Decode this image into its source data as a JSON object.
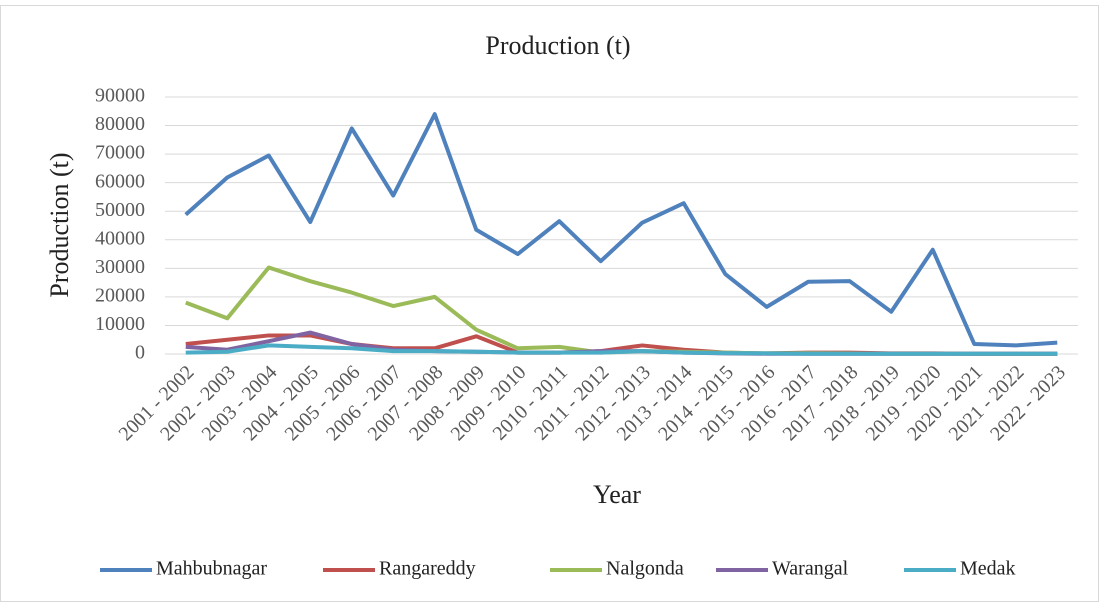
{
  "chart_data": {
    "type": "line",
    "title": "Production (t)",
    "x_label": "Year",
    "y_label": "Production (t)",
    "categories": [
      "2001 - 2002",
      "2002 - 2003",
      "2003 - 2004",
      "2004 - 2005",
      "2005 - 2006",
      "2006 - 2007",
      "2007 - 2008",
      "2008 - 2009",
      "2009 - 2010",
      "2010 - 2011",
      "2011 - 2012",
      "2012 - 2013",
      "2013 - 2014",
      "2014 - 2015",
      "2015 - 2016",
      "2016 - 2017",
      "2017 - 2018",
      "2018 - 2019",
      "2019 - 2020",
      "2020 - 2021",
      "2021 - 2022",
      "2022 - 2023"
    ],
    "series": [
      {
        "name": "Mahbubnagar",
        "color": "#4f81bd",
        "values": [
          48800,
          61800,
          69500,
          46200,
          79000,
          55500,
          84000,
          43500,
          35000,
          46500,
          32500,
          46000,
          52800,
          28000,
          16500,
          25300,
          25500,
          14800,
          36500,
          3500,
          3000,
          4000
        ]
      },
      {
        "name": "Rangareddy",
        "color": "#c0504d",
        "values": [
          3500,
          5000,
          6500,
          6500,
          3500,
          2000,
          2000,
          6200,
          500,
          500,
          1000,
          3000,
          1500,
          500,
          200,
          500,
          500,
          200,
          200,
          100,
          100,
          100
        ]
      },
      {
        "name": "Nalgonda",
        "color": "#9bbb59",
        "values": [
          18000,
          12500,
          30300,
          25500,
          21500,
          16800,
          20000,
          8500,
          2000,
          2500,
          500,
          1000,
          800,
          500,
          200,
          300,
          200,
          100,
          100,
          100,
          100,
          100
        ]
      },
      {
        "name": "Warangal",
        "color": "#8064a2",
        "values": [
          2500,
          1500,
          4500,
          7500,
          3500,
          1500,
          1000,
          800,
          500,
          500,
          1000,
          1000,
          500,
          200,
          100,
          100,
          100,
          100,
          100,
          100,
          100,
          100
        ]
      },
      {
        "name": "Medak",
        "color": "#4bacc6",
        "values": [
          500,
          800,
          3000,
          2500,
          2000,
          1000,
          1000,
          800,
          500,
          500,
          500,
          1000,
          500,
          300,
          200,
          100,
          100,
          100,
          100,
          100,
          100,
          100
        ]
      }
    ],
    "ylim": [
      0,
      90000
    ],
    "yticks": [
      0,
      10000,
      20000,
      30000,
      40000,
      50000,
      60000,
      70000,
      80000,
      90000
    ],
    "grid": true,
    "legend": "bottom"
  }
}
